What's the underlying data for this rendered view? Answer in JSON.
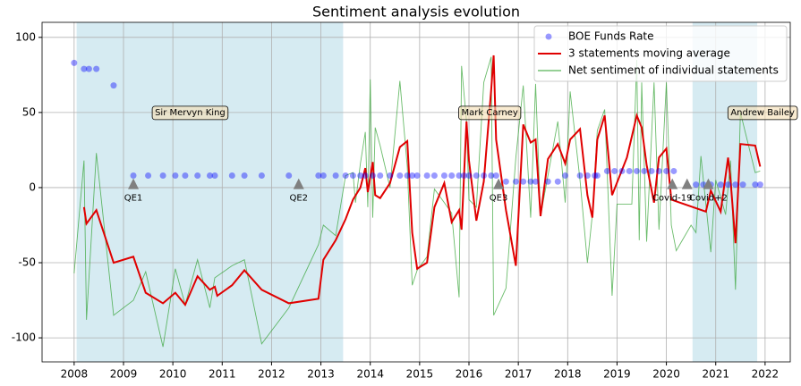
{
  "chart_data": {
    "type": "line",
    "title": "Sentiment analysis evolution",
    "xlim": [
      2007.35,
      2022.51
    ],
    "ylim": [
      -116,
      110
    ],
    "xticks": [
      2008,
      2009,
      2010,
      2011,
      2012,
      2013,
      2014,
      2015,
      2016,
      2017,
      2018,
      2019,
      2020,
      2021,
      2022
    ],
    "yticks": [
      -100,
      -50,
      0,
      50,
      100
    ],
    "grid": true,
    "legend": "upper right",
    "spans": [
      [
        2008.05,
        2013.45
      ],
      [
        2020.53,
        2021.84
      ]
    ],
    "span_color": "#add8e6",
    "annotations": [
      {
        "text": "Sir Mervyn King",
        "x": 2010.35,
        "y": 50
      },
      {
        "text": "Mark Carney",
        "x": 2016.42,
        "y": 50
      },
      {
        "text": "Andrew Bailey",
        "x": 2021.95,
        "y": 50
      }
    ],
    "events": [
      {
        "label": "QE1",
        "x": 2009.2,
        "y": 2
      },
      {
        "label": "QE2",
        "x": 2012.55,
        "y": 2
      },
      {
        "label": "QE3",
        "x": 2016.6,
        "y": 2
      },
      {
        "label": "Covid-19",
        "x": 2020.12,
        "y": 2
      },
      {
        "x": 2020.42,
        "y": 2
      },
      {
        "label": "Covid+2",
        "x": 2020.85,
        "y": 2
      }
    ],
    "event_color": "#808080",
    "series": [
      {
        "name": "BOE Funds Rate",
        "type": "scatter",
        "color": "#0000ff",
        "x": [
          2008.0,
          2008.2,
          2008.3,
          2008.45,
          2008.8,
          2009.2,
          2009.5,
          2009.8,
          2010.05,
          2010.25,
          2010.5,
          2010.75,
          2010.85,
          2011.2,
          2011.45,
          2011.8,
          2012.35,
          2012.95,
          2013.05,
          2013.3,
          2013.5,
          2013.65,
          2013.8,
          2013.9,
          2014.05,
          2014.2,
          2014.4,
          2014.6,
          2014.75,
          2014.85,
          2014.95,
          2015.15,
          2015.3,
          2015.5,
          2015.65,
          2015.8,
          2015.9,
          2016.0,
          2016.15,
          2016.3,
          2016.45,
          2016.55,
          2016.75,
          2016.95,
          2017.1,
          2017.25,
          2017.35,
          2017.6,
          2017.8,
          2017.95,
          2018.25,
          2018.4,
          2018.55,
          2018.6,
          2018.8,
          2018.95,
          2019.1,
          2019.25,
          2019.4,
          2019.55,
          2019.7,
          2019.85,
          2020.0,
          2020.15,
          2020.6,
          2020.75,
          2020.9,
          2021.1,
          2021.25,
          2021.4,
          2021.55,
          2021.8,
          2021.9
        ],
        "values": [
          83,
          79,
          79,
          79,
          68,
          8,
          8,
          8,
          8,
          8,
          8,
          8,
          8,
          8,
          8,
          8,
          8,
          8,
          8,
          8,
          8,
          8,
          8,
          8,
          8,
          8,
          8,
          8,
          8,
          8,
          8,
          8,
          8,
          8,
          8,
          8,
          8,
          8,
          8,
          8,
          8,
          8,
          4,
          4,
          4,
          4,
          4,
          4,
          4,
          8,
          8,
          8,
          8,
          8,
          11,
          11,
          11,
          11,
          11,
          11,
          11,
          11,
          11,
          11,
          2,
          2,
          2,
          2,
          2,
          2,
          2,
          2,
          2
        ]
      },
      {
        "name": "3 statements moving average",
        "type": "line",
        "color": "#e00000",
        "x": [
          2008.2,
          2008.25,
          2008.45,
          2008.8,
          2009.2,
          2009.45,
          2009.8,
          2010.05,
          2010.25,
          2010.5,
          2010.75,
          2010.85,
          2010.9,
          2011.2,
          2011.45,
          2011.8,
          2012.35,
          2012.95,
          2013.05,
          2013.3,
          2013.5,
          2013.65,
          2013.8,
          2013.9,
          2013.95,
          2014.05,
          2014.1,
          2014.2,
          2014.4,
          2014.6,
          2014.75,
          2014.85,
          2014.95,
          2015.15,
          2015.3,
          2015.5,
          2015.65,
          2015.8,
          2015.85,
          2015.95,
          2016.0,
          2016.15,
          2016.3,
          2016.45,
          2016.5,
          2016.55,
          2016.75,
          2016.95,
          2017.1,
          2017.25,
          2017.35,
          2017.45,
          2017.6,
          2017.8,
          2017.95,
          2018.05,
          2018.25,
          2018.4,
          2018.5,
          2018.6,
          2018.75,
          2018.9,
          2019.2,
          2019.4,
          2019.5,
          2019.6,
          2019.75,
          2019.85,
          2020.0,
          2020.1,
          2020.8,
          2020.9,
          2021.1,
          2021.25,
          2021.3,
          2021.4,
          2021.5,
          2021.8,
          2021.9
        ],
        "values": [
          -13,
          -24,
          -15,
          -50,
          -46,
          -70,
          -77,
          -70,
          -78,
          -59,
          -68,
          -66,
          -72,
          -65,
          -55,
          -68,
          -77,
          -74,
          -48,
          -35,
          -21,
          -8,
          0,
          13,
          -3,
          17,
          -5,
          -7,
          3,
          27,
          31,
          -30,
          -54,
          -50,
          -13,
          3,
          -23,
          -15,
          -28,
          44,
          18,
          -22,
          4,
          65,
          88,
          32,
          -15,
          -52,
          42,
          30,
          32,
          -19,
          19,
          29,
          16,
          32,
          39,
          -5,
          -20,
          32,
          48,
          -5,
          20,
          48,
          40,
          15,
          -10,
          20,
          26,
          -8,
          -16,
          -2,
          -16,
          20,
          5,
          -37,
          29,
          28,
          14
        ]
      },
      {
        "name": "Net sentiment of individual statements",
        "type": "line",
        "color": "#2ca02c",
        "x": [
          2008.0,
          2008.2,
          2008.25,
          2008.45,
          2008.8,
          2009.2,
          2009.45,
          2009.8,
          2010.05,
          2010.25,
          2010.5,
          2010.75,
          2010.85,
          2011.2,
          2011.45,
          2011.8,
          2012.35,
          2012.95,
          2013.05,
          2013.3,
          2013.5,
          2013.65,
          2013.7,
          2013.8,
          2013.9,
          2013.95,
          2014.0,
          2014.05,
          2014.1,
          2014.2,
          2014.4,
          2014.6,
          2014.75,
          2014.85,
          2014.95,
          2015.15,
          2015.3,
          2015.5,
          2015.65,
          2015.8,
          2015.85,
          2015.95,
          2016.0,
          2016.15,
          2016.3,
          2016.45,
          2016.5,
          2016.75,
          2016.95,
          2017.1,
          2017.25,
          2017.35,
          2017.45,
          2017.6,
          2017.8,
          2017.95,
          2018.05,
          2018.25,
          2018.4,
          2018.5,
          2018.6,
          2018.75,
          2018.9,
          2019.0,
          2019.3,
          2019.4,
          2019.45,
          2019.5,
          2019.6,
          2019.75,
          2019.85,
          2020.0,
          2020.1,
          2020.2,
          2020.5,
          2020.6,
          2020.7,
          2020.9,
          2021.0,
          2021.2,
          2021.3,
          2021.4,
          2021.5,
          2021.8,
          2021.9
        ],
        "values": [
          -57,
          18,
          -88,
          23,
          -85,
          -75,
          -56,
          -106,
          -54,
          -78,
          -48,
          -80,
          -60,
          -52,
          -48,
          -104,
          -80,
          -38,
          -25,
          -32,
          8,
          10,
          -10,
          16,
          37,
          -13,
          72,
          -20,
          40,
          28,
          0,
          71,
          14,
          -65,
          -55,
          -46,
          -1,
          -10,
          -17,
          -73,
          81,
          44,
          -8,
          -13,
          70,
          87,
          -85,
          -67,
          20,
          68,
          -20,
          69,
          -19,
          8,
          44,
          -10,
          64,
          5,
          -50,
          -18,
          38,
          52,
          -72,
          -11,
          -11,
          85,
          -35,
          70,
          -36,
          70,
          -28,
          70,
          -25,
          -42,
          -25,
          -30,
          21,
          -43,
          5,
          -18,
          18,
          -68,
          50,
          10,
          11
        ]
      }
    ]
  }
}
